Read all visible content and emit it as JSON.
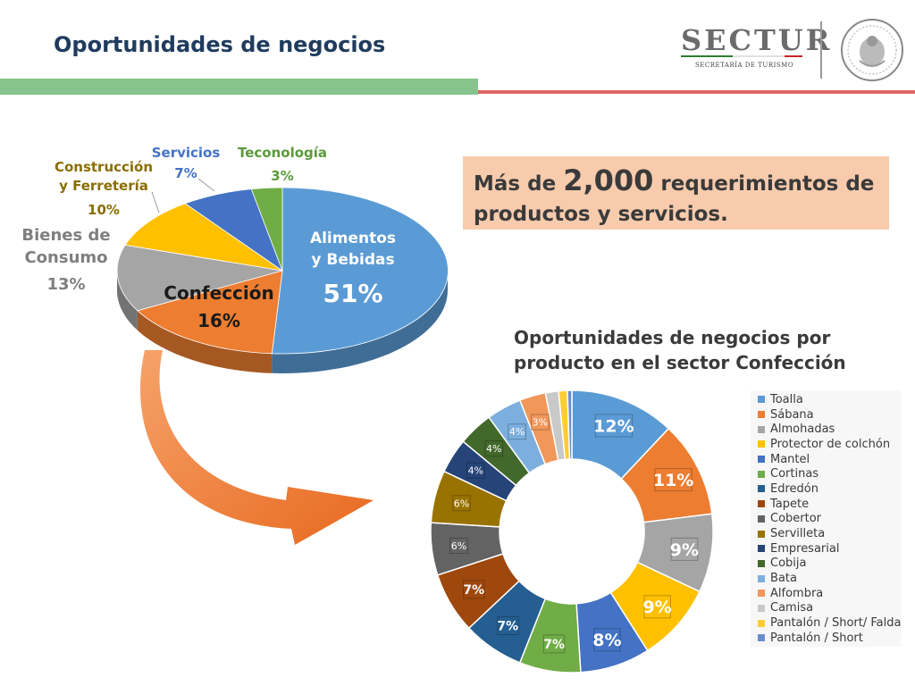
{
  "header": {
    "title": "Oportunidades de negocios",
    "logo_text": "SECTUR",
    "logo_subtitle": "SECRETARÍA DE TURISMO"
  },
  "highlight": {
    "prefix": "Más de ",
    "number": "2,000",
    "suffix": " requerimientos de productos y servicios."
  },
  "chart_data": [
    {
      "type": "pie",
      "title": "",
      "slices": [
        {
          "label": "Alimentos y Bebidas",
          "value": 51,
          "display": "51%",
          "color": "#5b9bd5"
        },
        {
          "label": "Confección",
          "value": 16,
          "display": "16%",
          "color": "#ed7d31"
        },
        {
          "label": "Bienes de Consumo",
          "value": 13,
          "display": "13%",
          "color": "#a5a5a5"
        },
        {
          "label": "Construcción y Ferretería",
          "value": 10,
          "display": "10%",
          "color": "#ffc000"
        },
        {
          "label": "Servicios",
          "value": 7,
          "display": "7%",
          "color": "#4472c4"
        },
        {
          "label": "Teconología",
          "value": 3,
          "display": "3%",
          "color": "#70ad47"
        }
      ]
    },
    {
      "type": "pie",
      "title": "Oportunidades de negocios por producto en el sector Confección",
      "legend_position": "right",
      "slices": [
        {
          "label": "Toalla",
          "value": 12,
          "display": "12%",
          "color": "#5b9bd5"
        },
        {
          "label": "Sábana",
          "value": 11,
          "display": "11%",
          "color": "#ed7d31"
        },
        {
          "label": "Almohadas",
          "value": 9,
          "display": "9%",
          "color": "#a5a5a5"
        },
        {
          "label": "Protector de colchón",
          "value": 9,
          "display": "9%",
          "color": "#ffc000"
        },
        {
          "label": "Mantel",
          "value": 8,
          "display": "8%",
          "color": "#4472c4"
        },
        {
          "label": "Cortinas",
          "value": 7,
          "display": "7%",
          "color": "#70ad47"
        },
        {
          "label": "Edredón",
          "value": 7,
          "display": "7%",
          "color": "#255e91"
        },
        {
          "label": "Tapete",
          "value": 7,
          "display": "7%",
          "color": "#9e480e"
        },
        {
          "label": "Cobertor",
          "value": 6,
          "display": "6%",
          "color": "#636363"
        },
        {
          "label": "Servilleta",
          "value": 6,
          "display": "6%",
          "color": "#997300"
        },
        {
          "label": "Empresarial",
          "value": 4,
          "display": "4%",
          "color": "#264478"
        },
        {
          "label": "Cobija",
          "value": 4,
          "display": "4%",
          "color": "#43682b"
        },
        {
          "label": "Bata",
          "value": 4,
          "display": "4%",
          "color": "#7cafdd"
        },
        {
          "label": "Alfombra",
          "value": 3,
          "display": "3%",
          "color": "#f1975a"
        },
        {
          "label": "Camisa",
          "value": 1.5,
          "display": "",
          "color": "#c9c9c9"
        },
        {
          "label": "Pantalón / Short/ Falda",
          "value": 1,
          "display": "",
          "color": "#ffcd33"
        },
        {
          "label": "Pantalón / Short",
          "value": 0.5,
          "display": "",
          "color": "#698ed0"
        }
      ]
    }
  ]
}
